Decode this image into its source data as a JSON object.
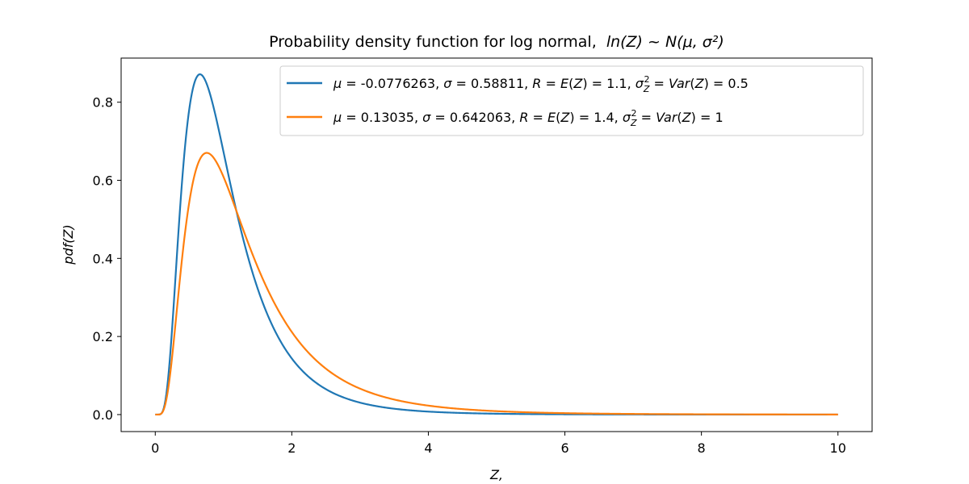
{
  "chart_data": {
    "type": "line",
    "title": "Probability density function for log normal, ln(Z) ~ N(μ, σ²)",
    "title_main": "Probability density function for log normal,",
    "title_math": "ln(Z) ~ N(μ, σ²)",
    "xlabel": "Z,",
    "ylabel": "pdf(Z)",
    "xlim": [
      -0.5,
      10.5
    ],
    "ylim": [
      -0.0435,
      0.913
    ],
    "x_ticks": [
      0,
      2,
      4,
      6,
      8,
      10
    ],
    "x_tick_labels": [
      "0",
      "2",
      "4",
      "6",
      "8",
      "10"
    ],
    "y_ticks": [
      0.0,
      0.2,
      0.4,
      0.6,
      0.8
    ],
    "y_tick_labels": [
      "0.0",
      "0.2",
      "0.4",
      "0.6",
      "0.8"
    ],
    "grid": false,
    "legend_position": "top-right",
    "x_range": [
      0,
      10
    ],
    "series": [
      {
        "name": "μ = -0.0776263, σ = 0.58811,  R = E(Z) = 1.1, σ_Z² = Var(Z) = 0.5",
        "mu": -0.0776263,
        "sigma": 0.58811,
        "color": "#1f77b4",
        "values_at": {
          "0.5": 0.799,
          "0.65": 0.871,
          "1.0": 0.672,
          "1.5": 0.326,
          "2.0": 0.146,
          "3.0": 0.029,
          "4.0": 0.007,
          "6.0": 0.0005,
          "10.0": 0.0
        }
      },
      {
        "name": "μ = 0.13035, σ = 0.642063,  R = E(Z) = 1.4, σ_Z² = Var(Z) = 1",
        "mu": 0.13035,
        "sigma": 0.642063,
        "color": "#ff7f0e",
        "values_at": {
          "0.5": 0.546,
          "0.75": 0.668,
          "1.0": 0.613,
          "1.5": 0.403,
          "2.0": 0.237,
          "3.0": 0.077,
          "4.0": 0.026,
          "6.0": 0.004,
          "10.0": 0.0001
        }
      }
    ],
    "legend_entries": [
      {
        "mu": "-0.0776263",
        "sigma": "0.58811",
        "R": "1.1",
        "var": "0.5"
      },
      {
        "mu": "0.13035",
        "sigma": "0.642063",
        "R": "1.4",
        "var": "1"
      }
    ]
  }
}
